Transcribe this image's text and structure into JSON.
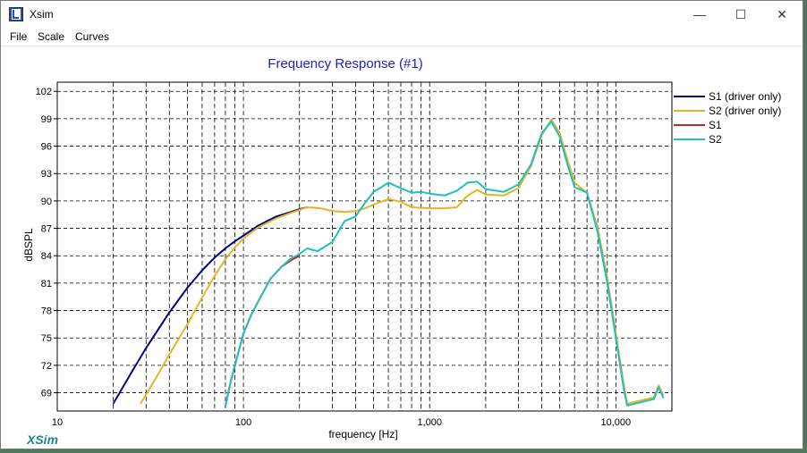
{
  "window": {
    "title": "Xsim",
    "controls": [
      "—",
      "☐",
      "✕"
    ]
  },
  "menu": {
    "items": [
      "File",
      "Scale",
      "Curves"
    ]
  },
  "branding": {
    "logo_text": "XSim"
  },
  "chart_data": {
    "type": "line",
    "title": "Frequency Response (#1)",
    "xlabel": "frequency [Hz]",
    "ylabel": "dBSPL",
    "x_scale": "log",
    "xlim": [
      10,
      20000
    ],
    "ylim": [
      67,
      103
    ],
    "x_ticks": [
      10,
      100,
      1000,
      10000
    ],
    "x_tick_labels": [
      "10",
      "100",
      "1,000",
      "10,000"
    ],
    "y_ticks": [
      69,
      72,
      75,
      78,
      81,
      84,
      87,
      90,
      93,
      96,
      99,
      102
    ],
    "grid": true,
    "legend_position": "right",
    "series": [
      {
        "name": "S1 (driver only)",
        "color": "#00008b",
        "x": [
          20,
          25,
          30,
          40,
          50,
          60,
          70,
          80,
          90,
          100,
          120,
          150,
          180,
          200,
          220
        ],
        "y": [
          67.8,
          71.2,
          73.9,
          77.8,
          80.5,
          82.4,
          83.8,
          84.8,
          85.6,
          86.2,
          87.3,
          88.3,
          88.8,
          89.1,
          89.3
        ]
      },
      {
        "name": "S2 (driver only)",
        "color": "#e6b422",
        "x": [
          28,
          35,
          40,
          50,
          60,
          70,
          80,
          90,
          100,
          120,
          150,
          180,
          220,
          260,
          300,
          350,
          400,
          450,
          500,
          600,
          700,
          800,
          1000,
          1200,
          1400,
          1600,
          1800,
          2000,
          2500,
          3000,
          3500,
          4000,
          4500,
          5000,
          5500,
          6000,
          6500,
          7000,
          8000,
          9000,
          10000,
          11000,
          11500,
          16000,
          17000,
          18000
        ],
        "y": [
          67.8,
          71.1,
          73.2,
          76.5,
          79.4,
          81.8,
          83.6,
          84.9,
          85.9,
          87.1,
          88.1,
          88.7,
          89.3,
          89.2,
          88.9,
          88.8,
          88.9,
          89.2,
          89.6,
          90.2,
          89.9,
          89.3,
          89.2,
          89.2,
          89.3,
          90.6,
          91.2,
          90.7,
          90.6,
          91.4,
          93.8,
          97.2,
          98.9,
          97.4,
          94.5,
          92.0,
          91.4,
          90.9,
          87.0,
          81.5,
          75.5,
          70.0,
          67.8,
          68.5,
          69.8,
          68.7
        ]
      },
      {
        "name": "S1",
        "color": "#cc2222",
        "x": [
          80,
          85,
          90,
          100,
          110,
          120,
          140,
          160,
          180,
          200
        ],
        "y": [
          67.5,
          70.0,
          72.0,
          75.5,
          77.5,
          79.0,
          81.5,
          82.8,
          83.5,
          84.0
        ]
      },
      {
        "name": "S2",
        "color": "#1fc0c0",
        "x": [
          80,
          85,
          90,
          100,
          110,
          120,
          140,
          160,
          180,
          200,
          220,
          250,
          300,
          350,
          400,
          450,
          500,
          550,
          600,
          700,
          800,
          900,
          1000,
          1200,
          1400,
          1600,
          1800,
          2000,
          2500,
          3000,
          3500,
          4000,
          4500,
          5000,
          5500,
          6000,
          6500,
          7000,
          8000,
          9000,
          10000,
          11000,
          11500,
          16000,
          17000,
          18000
        ],
        "y": [
          67.5,
          70.0,
          72.0,
          75.5,
          77.5,
          79.0,
          81.5,
          82.8,
          83.7,
          84.2,
          84.8,
          84.5,
          85.5,
          87.8,
          88.3,
          89.8,
          91.0,
          91.5,
          92.0,
          91.4,
          90.9,
          91.0,
          90.8,
          90.6,
          91.1,
          92.0,
          92.1,
          91.3,
          91.0,
          91.8,
          94.0,
          97.4,
          98.7,
          97.0,
          94.0,
          91.5,
          91.2,
          90.9,
          86.5,
          81.0,
          75.0,
          69.5,
          67.6,
          68.3,
          69.6,
          68.4
        ]
      }
    ]
  }
}
